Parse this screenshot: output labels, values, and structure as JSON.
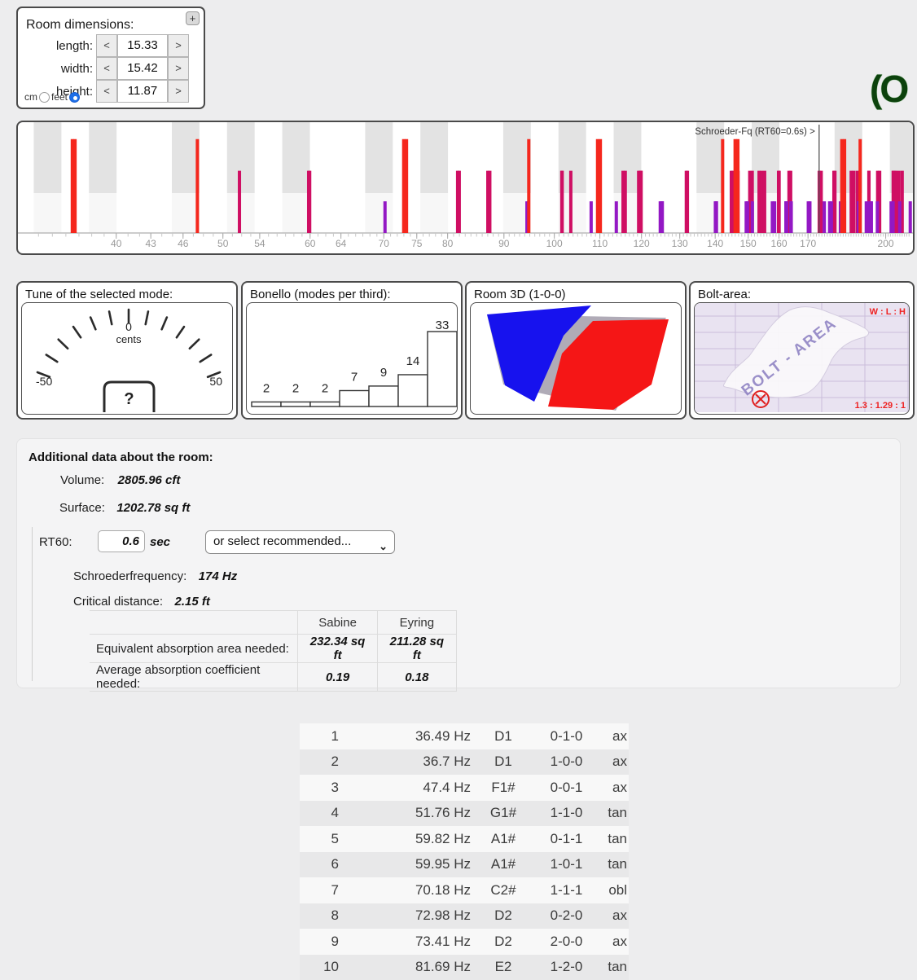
{
  "logo_text": "(O",
  "room_dimensions": {
    "title": "Room dimensions:",
    "expand_button_label": "+",
    "fields": [
      {
        "label": "length:",
        "value": "15.33",
        "dec": "<",
        "inc": ">"
      },
      {
        "label": "width:",
        "value": "15.42",
        "dec": "<",
        "inc": ">"
      },
      {
        "label": "height:",
        "value": "11.87",
        "dec": "<",
        "inc": ">"
      }
    ],
    "unit_cm_label": "cm",
    "unit_feet_label": "feet",
    "selected_unit": "feet"
  },
  "chart_data": [
    {
      "type": "bar",
      "name": "room-mode-spectrum",
      "x_axis": {
        "scale": "log",
        "range": [
          32.9,
          211
        ],
        "unit": "Hz",
        "tick_labels": [
          40,
          43,
          46,
          50,
          54,
          60,
          64,
          70,
          75,
          80,
          90,
          100,
          110,
          120,
          130,
          140,
          150,
          160,
          170,
          200
        ]
      },
      "annotation": {
        "label": "Schroeder-Fq (RT60=0.6s) >",
        "x": 174
      },
      "piano_black_key_bands_hz": [
        34.65,
        38.89,
        46.25,
        51.91,
        58.27,
        69.3,
        77.78,
        92.5,
        103.83,
        116.54,
        138.59,
        155.56,
        185.0,
        207.65
      ],
      "series": [
        {
          "name": "axial",
          "color": "#f5271d",
          "bar_height_frac": 0.86,
          "x": [
            36.49,
            36.7,
            47.4,
            72.98,
            73.41,
            94.8,
            109.47,
            110.11,
            142.2,
            145.96,
            146.81,
            182.45,
            183.52,
            189.6
          ]
        },
        {
          "name": "tangential",
          "color": "#cf0f63",
          "bar_height_frac": 0.57,
          "x": [
            51.76,
            59.82,
            59.95,
            81.69,
            81.97,
            87.02,
            87.38,
            101.58,
            101.66,
            103.51,
            115.46,
            116.0,
            119.29,
            119.64,
            119.88,
            119.9,
            131.8,
            132.1,
            144.81,
            145.3,
            146.86,
            150.5,
            151.28,
            153.46,
            154.27,
            155.26,
            159.84,
            160.03,
            163.37,
            163.95,
            174.04,
            174.76,
            179.46,
            179.85,
            182.83,
            183.1,
            186.08,
            187.1,
            188.5,
            189.54,
            193.08,
            193.12,
            196.66,
            197.49,
            203.16,
            203.32,
            203.78,
            204.39,
            205.6,
            207.02
          ]
        },
        {
          "name": "oblique",
          "color": "#9318c4",
          "bar_height_frac": 0.29,
          "x": [
            70.18,
            94.44,
            94.69,
            108.01,
            113.85,
            124.81,
            125.14,
            125.31,
            125.33,
            140.06,
            140.34,
            140.36,
            149.39,
            149.81,
            151.33,
            157.79,
            158.53,
            162.34,
            162.35,
            162.6,
            164.0,
            164.14,
            170.11,
            170.67,
            175.89,
            177.87,
            178.53,
            181.92,
            183.17,
            183.51,
            188.88,
            188.89,
            189.17,
            189.39,
            192.04,
            193.02,
            193.89,
            194.09,
            196.54,
            202.29,
            203.1,
            205.95,
            210.54
          ]
        }
      ]
    },
    {
      "type": "bar",
      "name": "bonello",
      "title": "Bonello (modes per third)",
      "values": [
        2,
        2,
        2,
        7,
        9,
        14,
        33
      ]
    }
  ],
  "panels": {
    "tune": {
      "title": "Tune of the selected mode:",
      "zero_label": "0",
      "unit_label": "cents",
      "min_label": "-50",
      "max_label": "50",
      "button_label": "?"
    },
    "bonello": {
      "title": "Bonello (modes per third):"
    },
    "room3d": {
      "title": "Room 3D (1-0-0)"
    },
    "bolt": {
      "title": "Bolt-area:",
      "corner_label": "W : L : H",
      "ratio_label": "1.3 : 1.29 : 1",
      "area_label": "BOLT - AREA"
    }
  },
  "additional": {
    "heading": "Additional data about the room:",
    "volume_label": "Volume:",
    "volume_value": "2805.96 cft",
    "surface_label": "Surface:",
    "surface_value": "1202.78 sq ft",
    "rt60_label": "RT60:",
    "rt60_value": "0.6",
    "rt60_unit": "sec",
    "select_value": "or select recommended...",
    "schroeder_label": "Schroederfrequency:",
    "schroeder_value": "174 Hz",
    "critical_label": "Critical distance:",
    "critical_value": "2.15 ft",
    "abs_table": {
      "col1": "Sabine",
      "col2": "Eyring",
      "rows": [
        {
          "label": "Equivalent absorption area needed:",
          "sabine": "232.34 sq ft",
          "eyring": "211.28 sq ft"
        },
        {
          "label": "Average absorption coefficient needed:",
          "sabine": "0.19",
          "eyring": "0.18"
        }
      ]
    }
  },
  "mode_table": {
    "rows": [
      [
        "1",
        "36.49 Hz",
        "D1",
        "0-1-0",
        "ax"
      ],
      [
        "2",
        "36.7 Hz",
        "D1",
        "1-0-0",
        "ax"
      ],
      [
        "3",
        "47.4 Hz",
        "F1#",
        "0-0-1",
        "ax"
      ],
      [
        "4",
        "51.76 Hz",
        "G1#",
        "1-1-0",
        "tan"
      ],
      [
        "5",
        "59.82 Hz",
        "A1#",
        "0-1-1",
        "tan"
      ],
      [
        "6",
        "59.95 Hz",
        "A1#",
        "1-0-1",
        "tan"
      ],
      [
        "7",
        "70.18 Hz",
        "C2#",
        "1-1-1",
        "obl"
      ],
      [
        "8",
        "72.98 Hz",
        "D2",
        "0-2-0",
        "ax"
      ],
      [
        "9",
        "73.41 Hz",
        "D2",
        "2-0-0",
        "ax"
      ],
      [
        "10",
        "81.69 Hz",
        "E2",
        "1-2-0",
        "tan"
      ]
    ]
  }
}
